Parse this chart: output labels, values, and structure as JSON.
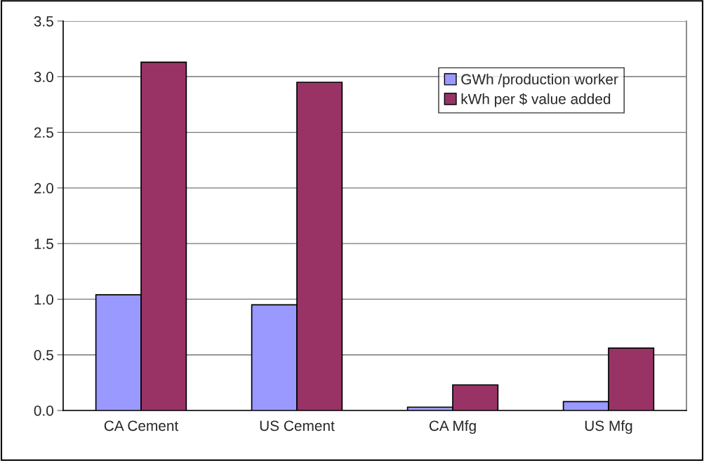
{
  "chart_data": {
    "type": "bar",
    "categories": [
      "CA Cement",
      "US Cement",
      "CA Mfg",
      "US Mfg"
    ],
    "series": [
      {
        "name": "GWh /production worker",
        "color": "#9999ff",
        "values": [
          1.04,
          0.95,
          0.03,
          0.08
        ]
      },
      {
        "name": "kWh per $ value added",
        "color": "#993366",
        "values": [
          3.13,
          2.95,
          0.23,
          0.56
        ]
      }
    ],
    "ylim": [
      0,
      3.5
    ],
    "yticks": [
      {
        "value": 0,
        "label": "0.0"
      },
      {
        "value": 0.5,
        "label": "0.5"
      },
      {
        "value": 1,
        "label": "1.0"
      },
      {
        "value": 1.5,
        "label": "1.5"
      },
      {
        "value": 2,
        "label": "2.0"
      },
      {
        "value": 2.5,
        "label": "2.5"
      },
      {
        "value": 3,
        "label": "3.0"
      },
      {
        "value": 3.5,
        "label": "3.5"
      }
    ],
    "grid": "y",
    "legend": "top right"
  }
}
